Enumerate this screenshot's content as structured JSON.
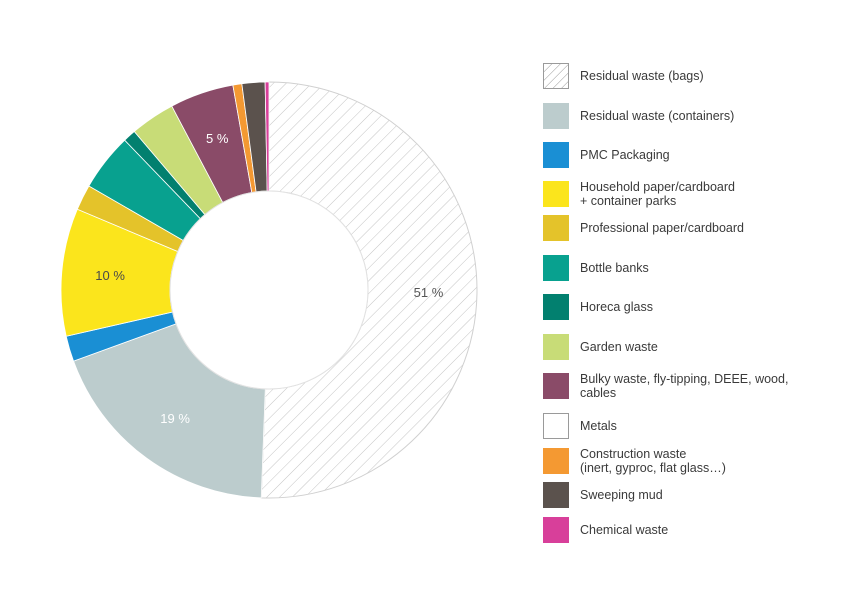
{
  "chart_data": {
    "type": "pie",
    "donut": true,
    "legend_position": "right",
    "slices": [
      {
        "name": "Residual waste (bags)",
        "value": 51,
        "color": "#ffffff",
        "pattern": "hatch",
        "label": "51 %",
        "label_color": "#555555"
      },
      {
        "name": "Residual waste (containers)",
        "value": 19,
        "color": "#bccccd",
        "label": "19 %",
        "label_color": "#ffffff"
      },
      {
        "name": "PMC Packaging",
        "value": 2,
        "color": "#1a8fd4"
      },
      {
        "name": "Household paper/cardboard\n+ container parks",
        "value": 10,
        "color": "#fbe51c",
        "label": "10 %",
        "label_color": "#4a4a4a"
      },
      {
        "name": "Professional paper/cardboard",
        "value": 2,
        "color": "#e4c32a"
      },
      {
        "name": "Bottle banks",
        "value": 4.5,
        "color": "#08a18f"
      },
      {
        "name": "Horeca glass",
        "value": 1,
        "color": "#02806f"
      },
      {
        "name": "Garden waste",
        "value": 3.5,
        "color": "#c8dc77"
      },
      {
        "name": "Bulky waste, fly-tipping, DEEE, wood,\ncables",
        "value": 5,
        "color": "#8a4b68",
        "label": "5 %",
        "label_color": "#ffffff"
      },
      {
        "name": "Metals",
        "value": 0,
        "color": "#ffffff"
      },
      {
        "name": "Construction waste\n(inert, gyproc, flat glass…)",
        "value": 0.7,
        "color": "#f49932"
      },
      {
        "name": "Sweeping mud",
        "value": 1.8,
        "color": "#5b524d"
      },
      {
        "name": "Chemical waste",
        "value": 0.3,
        "color": "#d83f9a"
      }
    ]
  }
}
